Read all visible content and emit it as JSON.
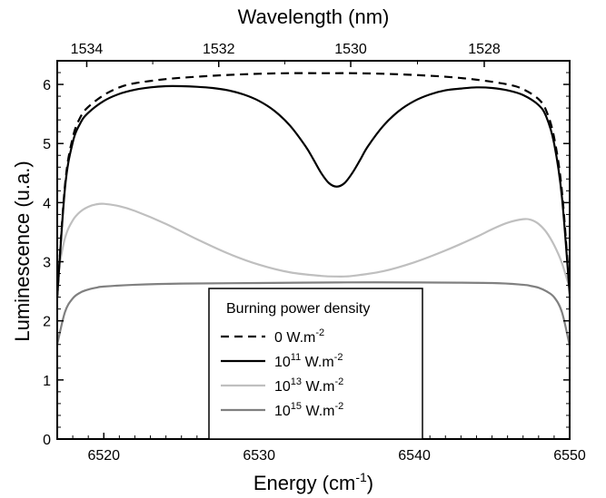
{
  "chart_data": {
    "type": "line",
    "xlabel": "Energy (cm",
    "xlabel_sup": "-1",
    "xlabel_close": ")",
    "ylabel": "Luminescence (u.a.)",
    "top_axis_label": "Wavelength (nm)",
    "xlim": [
      6517,
      6550
    ],
    "ylim": [
      0,
      6.4
    ],
    "x_ticks": [
      6520,
      6530,
      6540,
      6550
    ],
    "y_ticks": [
      0,
      1,
      2,
      3,
      4,
      5,
      6
    ],
    "top_ticks": [
      {
        "label": "1534",
        "x": 6518.9
      },
      {
        "label": "1532",
        "x": 6527.4
      },
      {
        "label": "1530",
        "x": 6535.9
      },
      {
        "label": "1528",
        "x": 6544.5
      }
    ],
    "grid": false,
    "legend": {
      "title": "Burning power density",
      "placement": "bottom-center",
      "entries": [
        {
          "base": "0",
          "exp": "",
          "unit": "  W.m",
          "unit_exp": "-2"
        },
        {
          "base": "10",
          "exp": "11",
          "unit": " W.m",
          "unit_exp": "-2"
        },
        {
          "base": "10",
          "exp": "13",
          "unit": " W.m",
          "unit_exp": "-2"
        },
        {
          "base": "10",
          "exp": "15",
          "unit": " W.m",
          "unit_exp": "-2"
        }
      ]
    },
    "series": [
      {
        "color": "#000000",
        "dash": "dashed",
        "x": [
          6517,
          6517.5,
          6518,
          6518.5,
          6519,
          6520,
          6521,
          6522,
          6524,
          6526,
          6528,
          6530,
          6532,
          6534,
          6535,
          6536,
          6538,
          6540,
          6542,
          6544,
          6546,
          6547,
          6548,
          6548.5,
          6549,
          6549.5,
          6550
        ],
        "y": [
          2.4,
          4.3,
          5.1,
          5.45,
          5.62,
          5.82,
          5.95,
          6.02,
          6.09,
          6.13,
          6.16,
          6.18,
          6.19,
          6.19,
          6.19,
          6.19,
          6.18,
          6.16,
          6.13,
          6.08,
          6.0,
          5.92,
          5.75,
          5.55,
          5.1,
          4.2,
          2.5
        ]
      },
      {
        "color": "#000000",
        "dash": "solid",
        "x": [
          6517,
          6517.5,
          6518,
          6518.5,
          6519,
          6520,
          6521,
          6522,
          6523,
          6524,
          6525,
          6526,
          6527,
          6528,
          6529,
          6530,
          6531,
          6532,
          6533,
          6533.5,
          6534,
          6534.5,
          6535,
          6535.5,
          6536,
          6536.5,
          6537,
          6538,
          6539,
          6540,
          6541,
          6542,
          6543,
          6544,
          6545,
          6546,
          6547,
          6548,
          6548.5,
          6549,
          6549.5,
          6550
        ],
        "y": [
          2.4,
          4.25,
          5.02,
          5.35,
          5.52,
          5.72,
          5.84,
          5.91,
          5.95,
          5.97,
          5.97,
          5.96,
          5.94,
          5.9,
          5.83,
          5.72,
          5.55,
          5.3,
          4.95,
          4.73,
          4.5,
          4.33,
          4.27,
          4.33,
          4.5,
          4.72,
          4.95,
          5.3,
          5.55,
          5.72,
          5.83,
          5.9,
          5.93,
          5.95,
          5.94,
          5.9,
          5.82,
          5.65,
          5.45,
          5.0,
          4.1,
          2.45
        ]
      },
      {
        "color": "#bfbfbf",
        "dash": "solid",
        "x": [
          6517,
          6517.5,
          6518,
          6518.5,
          6519,
          6519.5,
          6520,
          6521,
          6522,
          6524,
          6526,
          6528,
          6530,
          6532,
          6534,
          6535,
          6536,
          6538,
          6540,
          6542,
          6544,
          6545,
          6546,
          6547,
          6547.5,
          6548,
          6548.5,
          6549,
          6549.5,
          6550
        ],
        "y": [
          2.75,
          3.4,
          3.7,
          3.85,
          3.93,
          3.97,
          3.98,
          3.94,
          3.86,
          3.64,
          3.38,
          3.14,
          2.95,
          2.82,
          2.76,
          2.75,
          2.76,
          2.84,
          2.99,
          3.19,
          3.42,
          3.55,
          3.66,
          3.72,
          3.71,
          3.64,
          3.5,
          3.28,
          2.98,
          2.55
        ]
      },
      {
        "color": "#808080",
        "dash": "solid",
        "x": [
          6517,
          6517.5,
          6518,
          6518.5,
          6519,
          6519.5,
          6520,
          6522,
          6525,
          6530,
          6535,
          6540,
          6545,
          6547,
          6547.5,
          6548,
          6548.5,
          6549,
          6549.5,
          6550
        ],
        "y": [
          1.6,
          2.15,
          2.38,
          2.48,
          2.53,
          2.56,
          2.58,
          2.61,
          2.63,
          2.64,
          2.65,
          2.65,
          2.64,
          2.61,
          2.59,
          2.56,
          2.5,
          2.4,
          2.15,
          1.58
        ]
      }
    ]
  }
}
